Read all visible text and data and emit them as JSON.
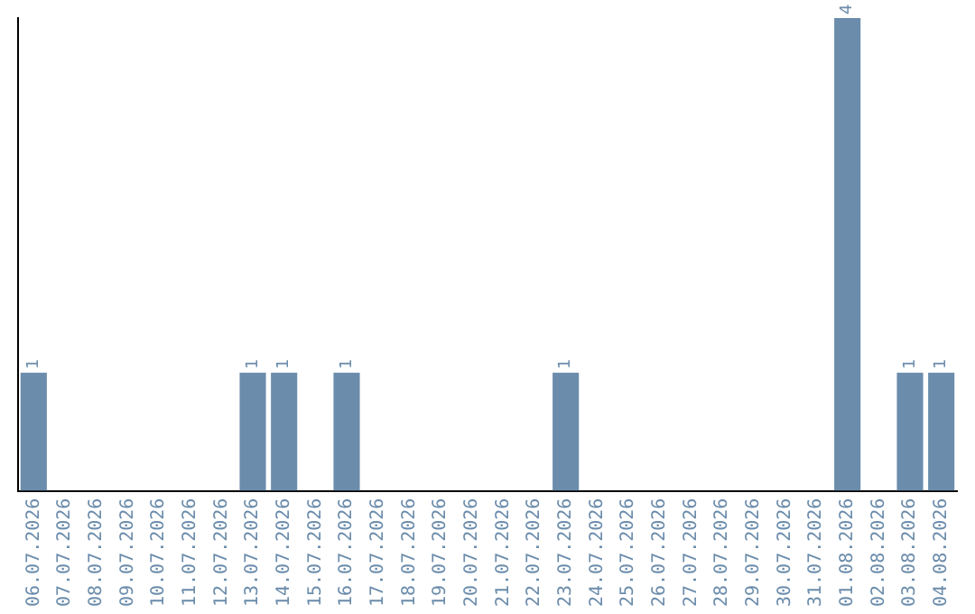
{
  "chart_data": {
    "type": "bar",
    "categories": [
      "06.07.2026",
      "07.07.2026",
      "08.07.2026",
      "09.07.2026",
      "10.07.2026",
      "11.07.2026",
      "12.07.2026",
      "13.07.2026",
      "14.07.2026",
      "15.07.2026",
      "16.07.2026",
      "17.07.2026",
      "18.07.2026",
      "19.07.2026",
      "20.07.2026",
      "21.07.2026",
      "22.07.2026",
      "23.07.2026",
      "24.07.2026",
      "25.07.2026",
      "26.07.2026",
      "27.07.2026",
      "28.07.2026",
      "29.07.2026",
      "30.07.2026",
      "31.07.2026",
      "01.08.2026",
      "02.08.2026",
      "03.08.2026",
      "04.08.2026"
    ],
    "values": [
      1,
      0,
      0,
      0,
      0,
      0,
      0,
      1,
      1,
      0,
      1,
      0,
      0,
      0,
      0,
      0,
      0,
      1,
      0,
      0,
      0,
      0,
      0,
      0,
      0,
      0,
      4,
      0,
      1,
      1
    ],
    "value_labels": [
      "1",
      null,
      null,
      null,
      null,
      null,
      null,
      "1",
      "1",
      null,
      "1",
      null,
      null,
      null,
      null,
      null,
      null,
      "1",
      null,
      null,
      null,
      null,
      null,
      null,
      null,
      null,
      "4",
      null,
      "1",
      "1"
    ],
    "color": "#6b8cab",
    "ylim": [
      0,
      4
    ],
    "tick_labels": "x",
    "grid": false,
    "legend": false
  }
}
